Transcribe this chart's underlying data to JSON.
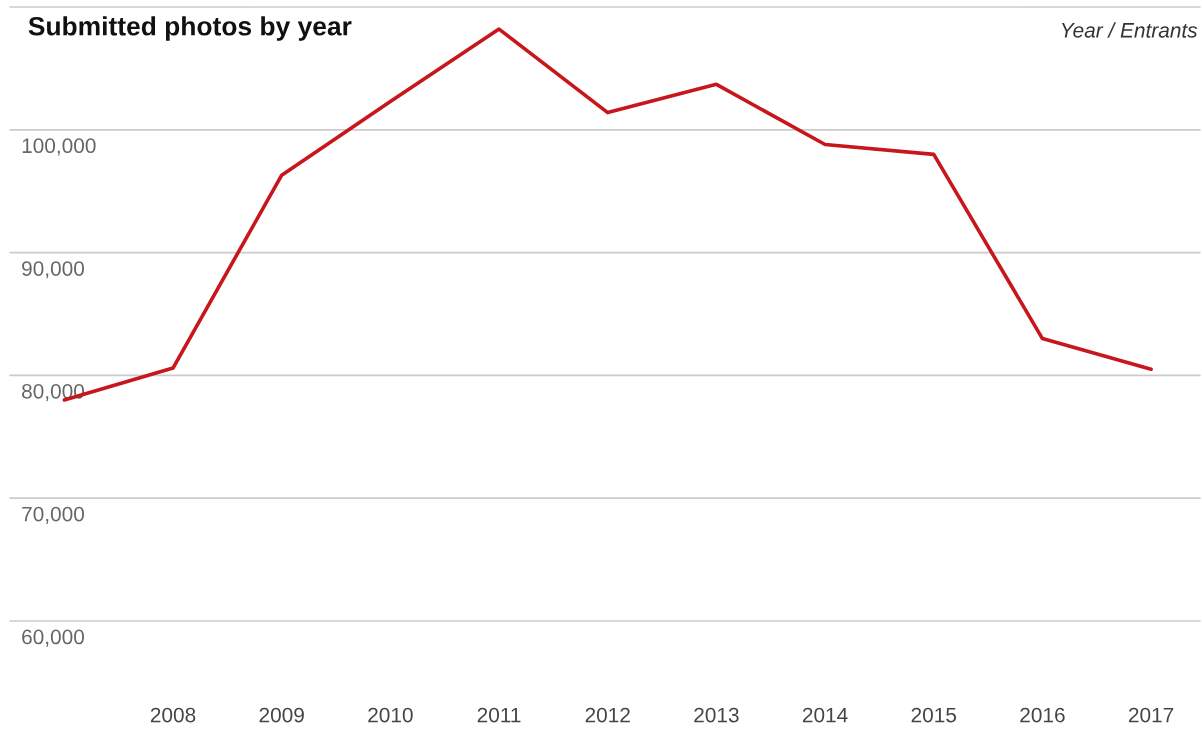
{
  "chart_data": {
    "type": "line",
    "title": "Submitted photos by year",
    "annotations": [
      "Year / Entrants"
    ],
    "x": [
      2007,
      2008,
      2009,
      2010,
      2011,
      2012,
      2013,
      2014,
      2015,
      2016,
      2017
    ],
    "series": [
      {
        "color": "#c8161d",
        "values": [
          78000,
          80600,
          96300,
          102300,
          108200,
          101400,
          103700,
          98800,
          98000,
          83000,
          80500
        ]
      }
    ],
    "xlim": [
      2006.5,
      2017.45
    ],
    "xticks": [
      2008,
      2009,
      2010,
      2011,
      2012,
      2013,
      2014,
      2015,
      2016,
      2017
    ],
    "ylim": [
      60000,
      110000
    ],
    "yticks": [
      {
        "value": 60000,
        "label": "60,000"
      },
      {
        "value": 70000,
        "label": "70,000"
      },
      {
        "value": 80000,
        "label": "80,000"
      },
      {
        "value": 90000,
        "label": "90,000"
      },
      {
        "value": 100000,
        "label": "100,000"
      },
      {
        "value": 110000,
        "label": null
      }
    ],
    "grid": "y",
    "legend": false,
    "marker": "none",
    "line_style": "solid"
  }
}
